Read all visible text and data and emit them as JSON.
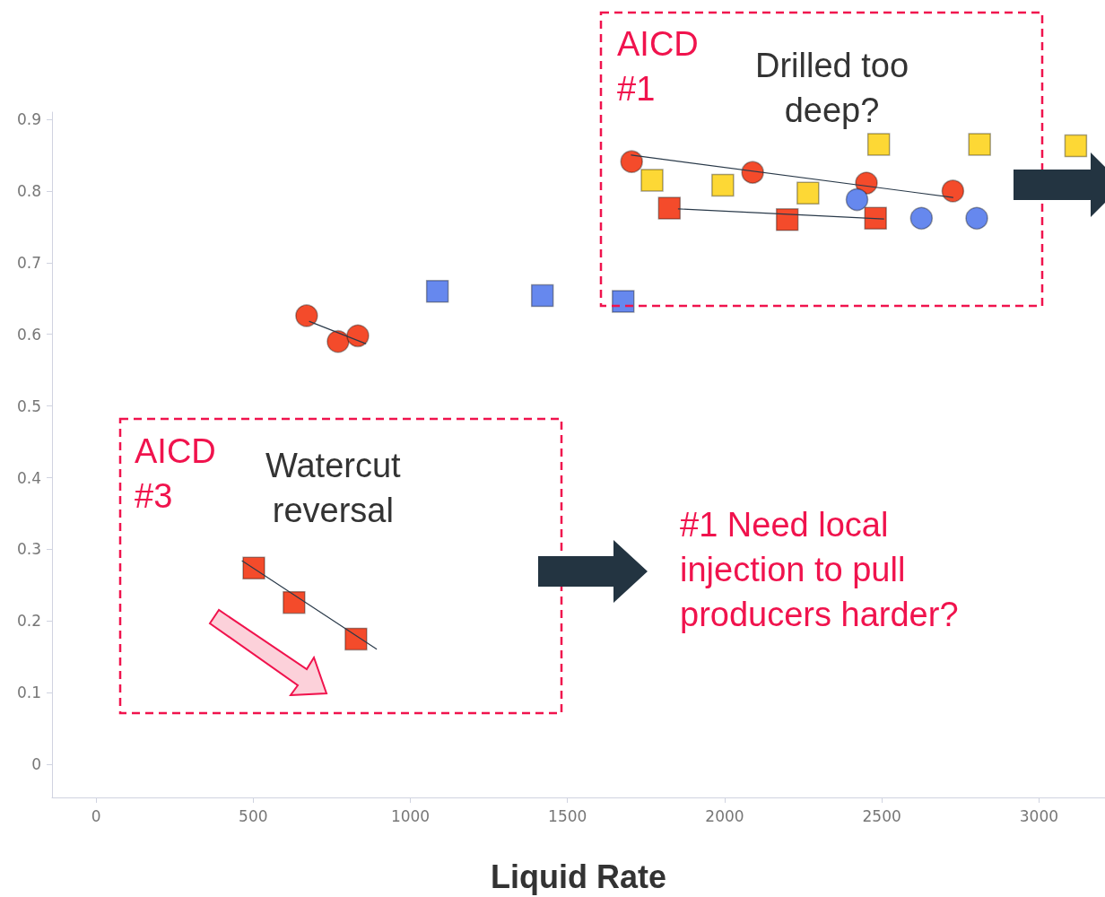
{
  "chart_data": {
    "type": "scatter",
    "xlabel": "Liquid Rate",
    "xlim": [
      -140,
      3210
    ],
    "xticks": [
      0,
      500,
      1000,
      1500,
      2000,
      2500,
      3000
    ],
    "ylim": [
      -0.046,
      0.91
    ],
    "yticks": [
      0,
      0.1,
      0.2,
      0.3,
      0.4,
      0.5,
      0.6,
      0.7,
      0.8,
      0.9
    ],
    "grid": false,
    "series": [
      {
        "marker": "circle",
        "color": "#f44b2b",
        "x": [
          670,
          770,
          833,
          1704,
          2089,
          2451,
          2726
        ],
        "values": [
          0.626,
          0.59,
          0.598,
          0.841,
          0.826,
          0.811,
          0.8
        ]
      },
      {
        "marker": "square",
        "color": "#6688ee",
        "x": [
          1086,
          1420,
          1677
        ],
        "values": [
          0.66,
          0.654,
          0.646
        ]
      },
      {
        "marker": "square",
        "color": "#f44b2b",
        "x": [
          502,
          630,
          827,
          1824,
          2199,
          2480
        ],
        "values": [
          0.274,
          0.226,
          0.175,
          0.776,
          0.76,
          0.762
        ]
      },
      {
        "marker": "square",
        "color": "#fdd835",
        "x": [
          1769,
          1994,
          2265,
          2490,
          2811,
          3117
        ],
        "values": [
          0.815,
          0.808,
          0.797,
          0.865,
          0.865,
          0.863
        ]
      },
      {
        "marker": "circle",
        "color": "#6688ee",
        "x": [
          2421,
          2626,
          2802
        ],
        "values": [
          0.788,
          0.762,
          0.762
        ]
      },
      {
        "type": "line",
        "line_style": "solid",
        "color": "#2a3a4a",
        "x": [
          679,
          858
        ],
        "values": [
          0.618,
          0.587
        ]
      },
      {
        "type": "line",
        "line_style": "solid",
        "color": "#2a3a4a",
        "x": [
          465,
          892
        ],
        "values": [
          0.284,
          0.161
        ]
      },
      {
        "type": "line",
        "line_style": "solid",
        "color": "#2a3a4a",
        "x": [
          1703,
          2726
        ],
        "values": [
          0.85,
          0.791
        ]
      },
      {
        "type": "line",
        "line_style": "solid",
        "color": "#2a3a4a",
        "x": [
          1853,
          2506
        ],
        "values": [
          0.775,
          0.761
        ]
      }
    ],
    "annotations": [
      "AICD\n#1",
      "Drilled too\ndeep?",
      "AICD\n#3",
      "Watercut\nreversal",
      "#1 Need local\ninjection to pull\nproducers harder?"
    ]
  }
}
